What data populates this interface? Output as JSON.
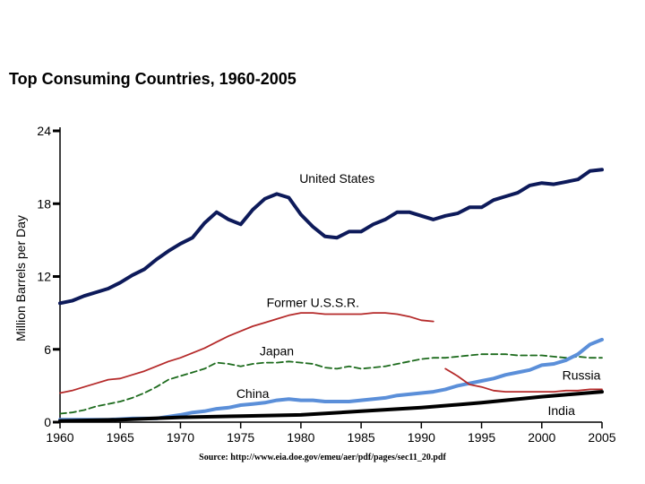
{
  "chart_data": {
    "type": "line",
    "title": "Top Consuming Countries, 1960-2005",
    "xlabel": "",
    "ylabel": "Million Barrels per Day",
    "xlim": [
      1960,
      2005
    ],
    "ylim": [
      0,
      24
    ],
    "x_ticks": [
      "1960",
      "1965",
      "1970",
      "1975",
      "1980",
      "1985",
      "1990",
      "1995",
      "2000",
      "2005"
    ],
    "y_ticks": [
      "0",
      "6",
      "12",
      "18",
      "24"
    ],
    "source": "Source: http://www.eia.doe.gov/emeu/aer/pdf/pages/sec11_20.pdf",
    "series": [
      {
        "name": "United States",
        "label": "United States",
        "color": "#0d1a5a",
        "style": "solid",
        "weight": "bold",
        "x": [
          1960,
          1961,
          1962,
          1963,
          1964,
          1965,
          1966,
          1967,
          1968,
          1969,
          1970,
          1971,
          1972,
          1973,
          1974,
          1975,
          1976,
          1977,
          1978,
          1979,
          1980,
          1981,
          1982,
          1983,
          1984,
          1985,
          1986,
          1987,
          1988,
          1989,
          1990,
          1991,
          1992,
          1993,
          1994,
          1995,
          1996,
          1997,
          1998,
          1999,
          2000,
          2001,
          2002,
          2003,
          2004,
          2005
        ],
        "values": [
          9.8,
          10.0,
          10.4,
          10.7,
          11.0,
          11.5,
          12.1,
          12.6,
          13.4,
          14.1,
          14.7,
          15.2,
          16.4,
          17.3,
          16.7,
          16.3,
          17.5,
          18.4,
          18.8,
          18.5,
          17.1,
          16.1,
          15.3,
          15.2,
          15.7,
          15.7,
          16.3,
          16.7,
          17.3,
          17.3,
          17.0,
          16.7,
          17.0,
          17.2,
          17.7,
          17.7,
          18.3,
          18.6,
          18.9,
          19.5,
          19.7,
          19.6,
          19.8,
          20.0,
          20.7,
          20.8
        ]
      },
      {
        "name": "Former U.S.S.R.",
        "label": "Former U.S.S.R.",
        "color": "#b52a2a",
        "style": "solid",
        "weight": "normal",
        "x": [
          1960,
          1961,
          1962,
          1963,
          1964,
          1965,
          1966,
          1967,
          1968,
          1969,
          1970,
          1971,
          1972,
          1973,
          1974,
          1975,
          1976,
          1977,
          1978,
          1979,
          1980,
          1981,
          1982,
          1983,
          1984,
          1985,
          1986,
          1987,
          1988,
          1989,
          1990,
          1991
        ],
        "values": [
          2.4,
          2.6,
          2.9,
          3.2,
          3.5,
          3.6,
          3.9,
          4.2,
          4.6,
          5.0,
          5.3,
          5.7,
          6.1,
          6.6,
          7.1,
          7.5,
          7.9,
          8.2,
          8.5,
          8.8,
          9.0,
          9.0,
          8.9,
          8.9,
          8.9,
          8.9,
          9.0,
          9.0,
          8.9,
          8.7,
          8.4,
          8.3
        ]
      },
      {
        "name": "Japan",
        "label": "Japan",
        "color": "#1d6b1d",
        "style": "dashed",
        "weight": "normal",
        "x": [
          1960,
          1961,
          1962,
          1963,
          1964,
          1965,
          1966,
          1967,
          1968,
          1969,
          1970,
          1971,
          1972,
          1973,
          1974,
          1975,
          1976,
          1977,
          1978,
          1979,
          1980,
          1981,
          1982,
          1983,
          1984,
          1985,
          1986,
          1987,
          1988,
          1989,
          1990,
          1991,
          1992,
          1993,
          1994,
          1995,
          1996,
          1997,
          1998,
          1999,
          2000,
          2001,
          2002,
          2003,
          2004,
          2005
        ],
        "values": [
          0.7,
          0.8,
          1.0,
          1.3,
          1.5,
          1.7,
          2.0,
          2.4,
          2.9,
          3.5,
          3.8,
          4.1,
          4.4,
          4.9,
          4.8,
          4.6,
          4.8,
          4.9,
          4.9,
          5.0,
          4.9,
          4.8,
          4.5,
          4.4,
          4.6,
          4.4,
          4.5,
          4.6,
          4.8,
          5.0,
          5.2,
          5.3,
          5.3,
          5.4,
          5.5,
          5.6,
          5.6,
          5.6,
          5.5,
          5.5,
          5.5,
          5.4,
          5.3,
          5.4,
          5.3,
          5.3
        ]
      },
      {
        "name": "China",
        "label": "China",
        "color": "#5b8fd9",
        "style": "solid",
        "weight": "bold",
        "x": [
          1960,
          1962,
          1964,
          1966,
          1968,
          1970,
          1971,
          1972,
          1973,
          1974,
          1975,
          1976,
          1977,
          1978,
          1979,
          1980,
          1981,
          1982,
          1983,
          1984,
          1985,
          1986,
          1987,
          1988,
          1989,
          1990,
          1991,
          1992,
          1993,
          1994,
          1995,
          1996,
          1997,
          1998,
          1999,
          2000,
          2001,
          2002,
          2003,
          2004,
          2005
        ],
        "values": [
          0.2,
          0.2,
          0.2,
          0.3,
          0.3,
          0.6,
          0.8,
          0.9,
          1.1,
          1.2,
          1.4,
          1.5,
          1.6,
          1.8,
          1.9,
          1.8,
          1.8,
          1.7,
          1.7,
          1.7,
          1.8,
          1.9,
          2.0,
          2.2,
          2.3,
          2.4,
          2.5,
          2.7,
          3.0,
          3.2,
          3.4,
          3.6,
          3.9,
          4.1,
          4.3,
          4.7,
          4.8,
          5.1,
          5.6,
          6.4,
          6.8
        ]
      },
      {
        "name": "Russia",
        "label": "Russia",
        "color": "#b52a2a",
        "style": "solid",
        "weight": "normal",
        "x": [
          1992,
          1993,
          1994,
          1995,
          1996,
          1997,
          1998,
          1999,
          2000,
          2001,
          2002,
          2003,
          2004,
          2005
        ],
        "values": [
          4.4,
          3.8,
          3.1,
          2.9,
          2.6,
          2.5,
          2.5,
          2.5,
          2.5,
          2.5,
          2.6,
          2.6,
          2.7,
          2.7
        ]
      },
      {
        "name": "India",
        "label": "India",
        "color": "#000000",
        "style": "solid",
        "weight": "bold",
        "x": [
          1960,
          1965,
          1970,
          1975,
          1980,
          1985,
          1990,
          1995,
          2000,
          2005
        ],
        "values": [
          0.1,
          0.2,
          0.4,
          0.5,
          0.6,
          0.9,
          1.2,
          1.6,
          2.1,
          2.5
        ]
      }
    ]
  }
}
